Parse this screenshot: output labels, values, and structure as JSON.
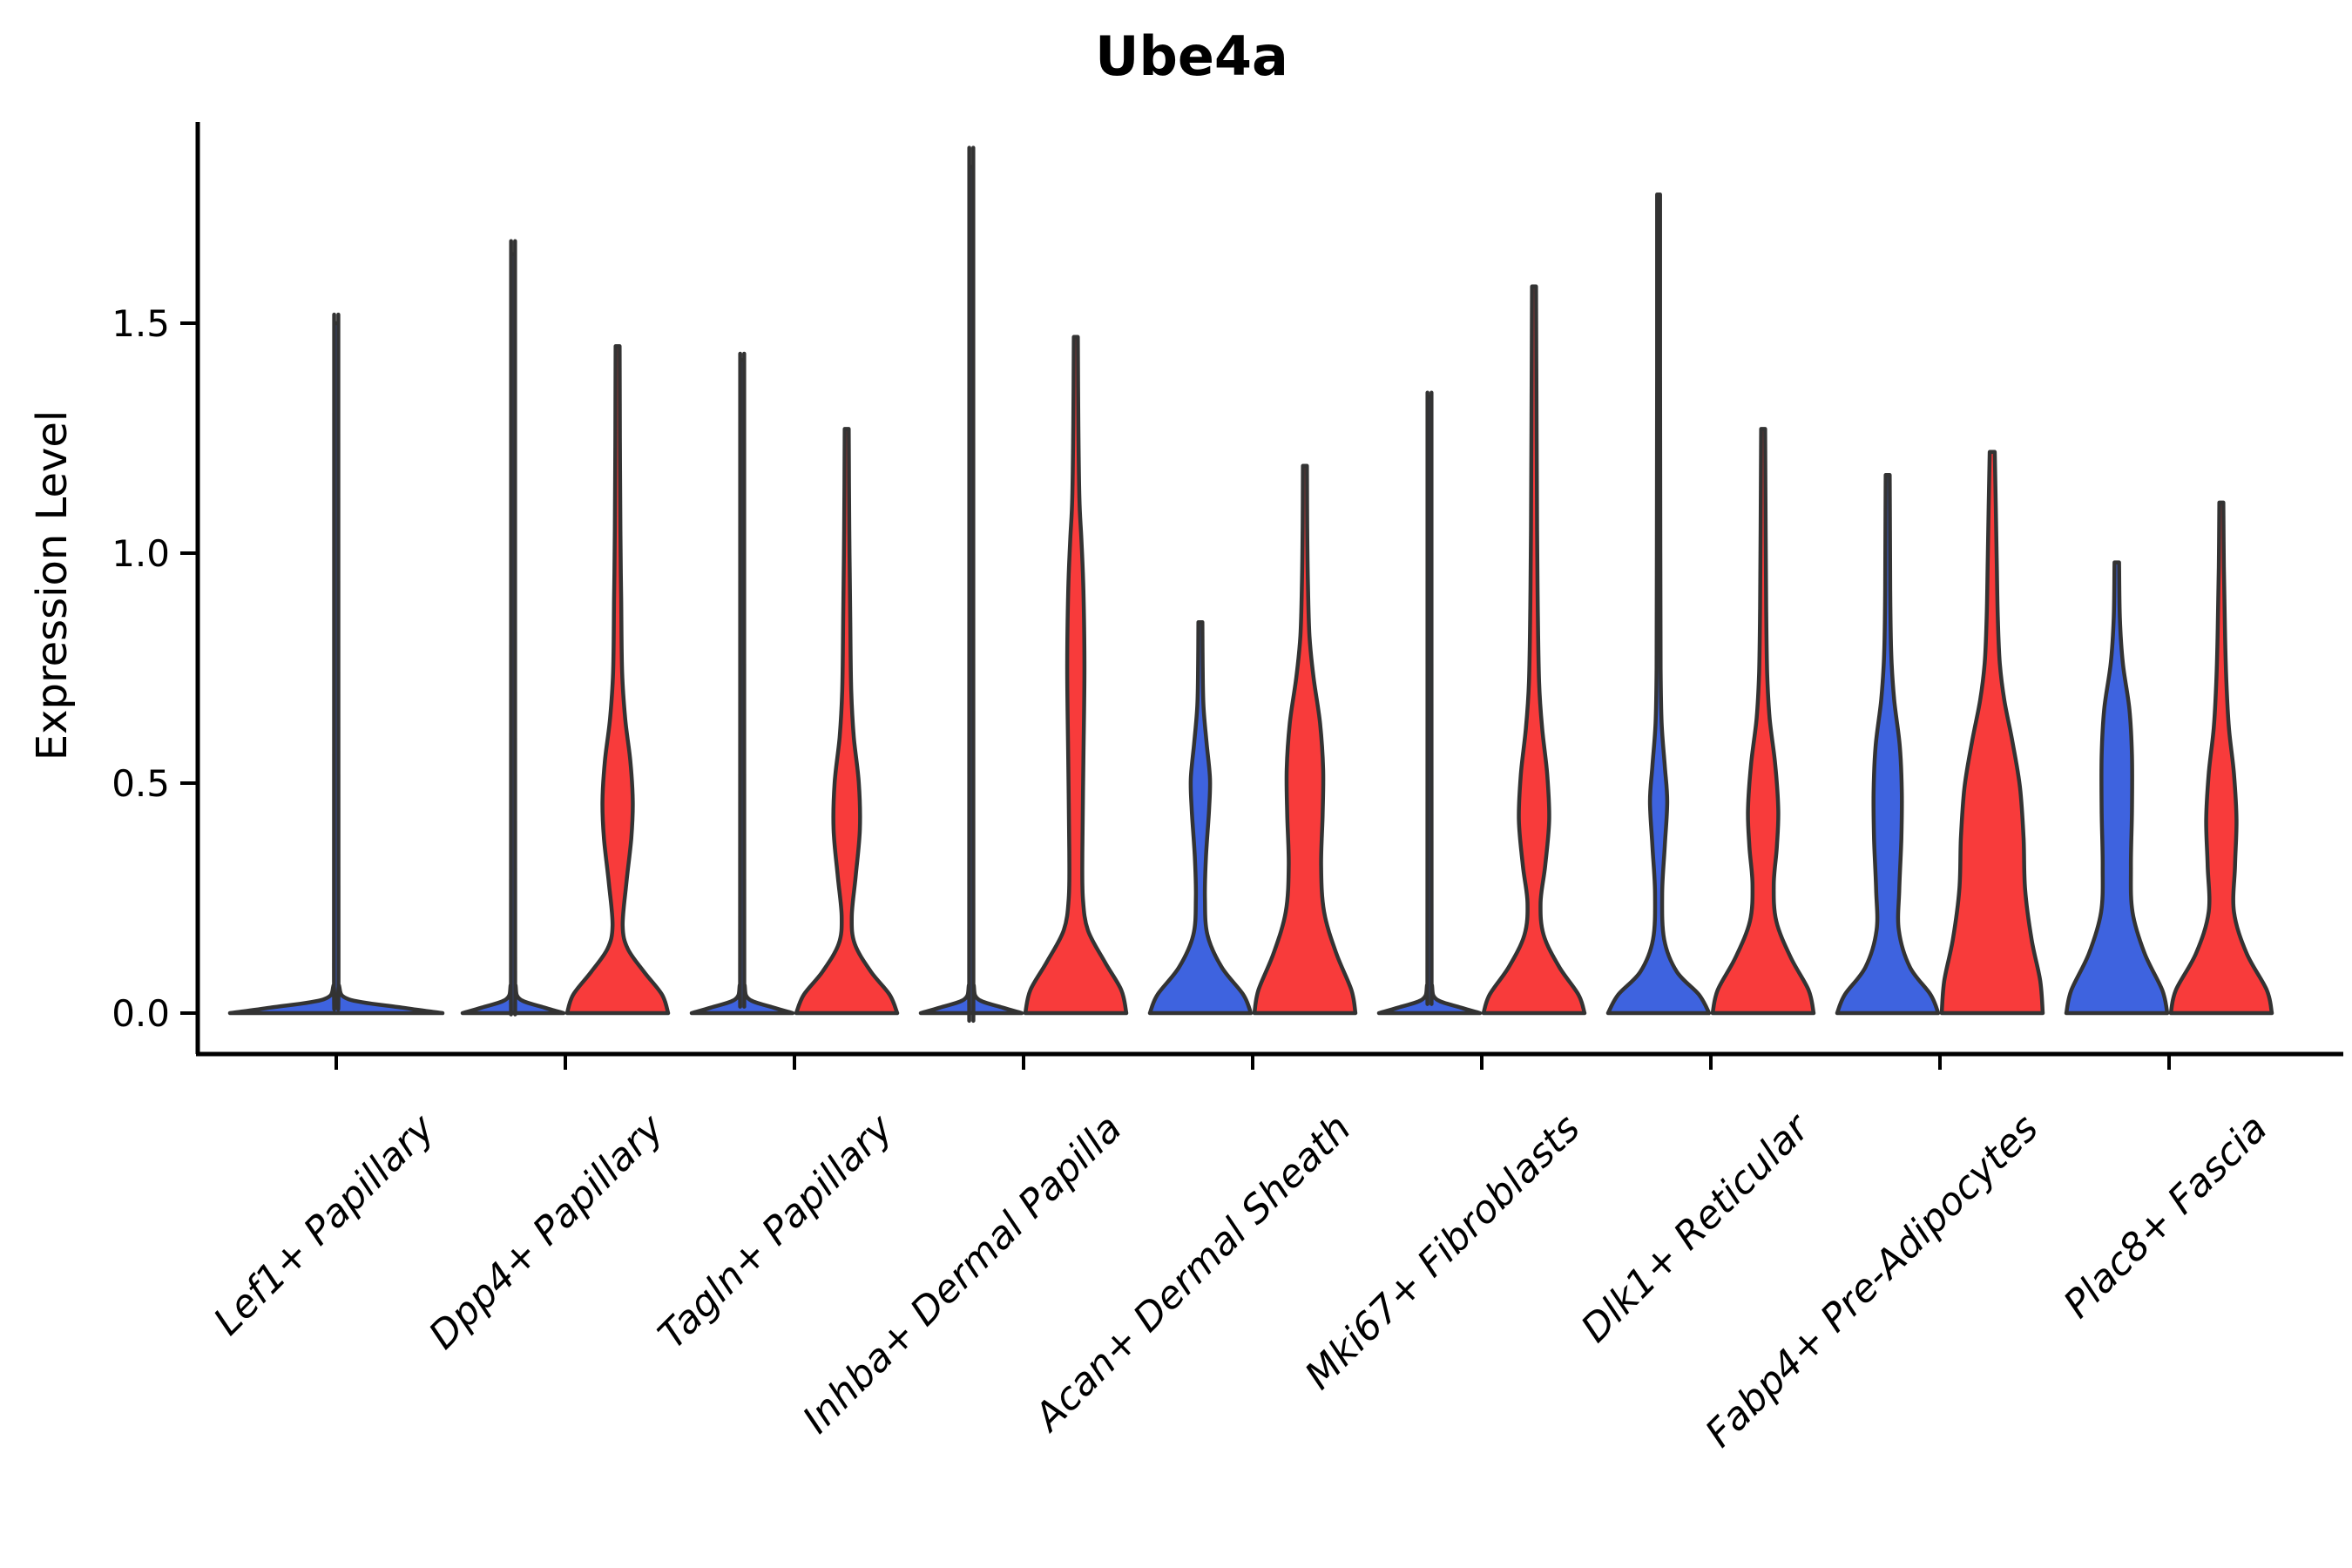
{
  "title": "Ube4a",
  "y_axis": {
    "label": "Expression Level",
    "tick_labels": [
      "0.0",
      "0.5",
      "1.0",
      "1.5"
    ]
  },
  "colors": {
    "split_blue": "#3E63DF",
    "split_red": "#F83B3B",
    "violin_outline": "#333333",
    "axis": "#000000",
    "background": "#FFFFFF"
  },
  "chart_data": {
    "type": "violin",
    "title": "Ube4a",
    "ylabel": "Expression Level",
    "xlabel": "",
    "grid": false,
    "legend": "none",
    "yticks": [
      0,
      0.5,
      1,
      1.5
    ],
    "ytick_labels": [
      "0.0",
      "0.5",
      "1.0",
      "1.5"
    ],
    "ylim": [
      -0.09,
      1.94
    ],
    "categories": [
      "Lef1+ Papillary",
      "Dpp4+ Papillary",
      "Tagln+ Papillary",
      "Inhba+ Dermal Papilla",
      "Acan+ Dermal Sheath",
      "Mki67+ Fibroblasts",
      "Dlk1+ Reticular",
      "Fabp4+ Pre-Adipocytes",
      "Plac8+ Fascia"
    ],
    "splits": [
      {
        "id": "blue",
        "color": "#3E63DF"
      },
      {
        "id": "red",
        "color": "#F83B3B"
      }
    ],
    "max_expression": {
      "blue": [
        1.5,
        1.65,
        1.42,
        1.84,
        0.85,
        1.34,
        1.78,
        1.17,
        0.98
      ],
      "red": [
        null,
        1.45,
        1.27,
        1.47,
        1.19,
        1.58,
        1.27,
        1.22,
        1.11
      ]
    },
    "violins": [
      {
        "category_index": 0,
        "category": "Lef1+ Papillary",
        "split": "blue",
        "span": "full",
        "top": 1.5,
        "profile": [
          [
            0,
            1
          ],
          [
            0.012,
            0.62
          ],
          [
            0.03,
            0.12
          ],
          [
            0.06,
            0.026
          ],
          [
            0.12,
            0.021
          ],
          [
            1.38,
            0.02
          ],
          [
            1.5,
            0.02
          ]
        ]
      },
      {
        "category_index": 1,
        "category": "Dpp4+ Papillary",
        "split": "blue",
        "span": "half",
        "top": 1.65,
        "profile": [
          [
            0,
            1
          ],
          [
            0.012,
            0.62
          ],
          [
            0.03,
            0.14
          ],
          [
            0.06,
            0.05
          ],
          [
            0.12,
            0.042
          ],
          [
            1.53,
            0.04
          ],
          [
            1.65,
            0.04
          ]
        ]
      },
      {
        "category_index": 1,
        "category": "Dpp4+ Papillary",
        "split": "red",
        "span": "half",
        "top": 1.45,
        "profile": [
          [
            0,
            1
          ],
          [
            0.04,
            0.88
          ],
          [
            0.09,
            0.52
          ],
          [
            0.14,
            0.2
          ],
          [
            0.19,
            0.1
          ],
          [
            0.28,
            0.17
          ],
          [
            0.38,
            0.27
          ],
          [
            0.46,
            0.3
          ],
          [
            0.55,
            0.25
          ],
          [
            0.64,
            0.15
          ],
          [
            0.74,
            0.09
          ],
          [
            0.9,
            0.07
          ],
          [
            1.05,
            0.055
          ],
          [
            1.25,
            0.045
          ],
          [
            1.45,
            0.04
          ]
        ]
      },
      {
        "category_index": 2,
        "category": "Tagln+ Papillary",
        "split": "blue",
        "span": "half",
        "top": 1.42,
        "profile": [
          [
            0,
            1
          ],
          [
            0.012,
            0.62
          ],
          [
            0.03,
            0.14
          ],
          [
            0.06,
            0.05
          ],
          [
            0.12,
            0.042
          ],
          [
            1.3,
            0.04
          ],
          [
            1.42,
            0.04
          ]
        ]
      },
      {
        "category_index": 2,
        "category": "Tagln+ Papillary",
        "split": "red",
        "span": "half",
        "top": 1.27,
        "profile": [
          [
            0,
            1
          ],
          [
            0.04,
            0.85
          ],
          [
            0.09,
            0.48
          ],
          [
            0.15,
            0.16
          ],
          [
            0.21,
            0.1
          ],
          [
            0.3,
            0.18
          ],
          [
            0.4,
            0.26
          ],
          [
            0.5,
            0.24
          ],
          [
            0.6,
            0.14
          ],
          [
            0.7,
            0.09
          ],
          [
            0.85,
            0.07
          ],
          [
            1.0,
            0.055
          ],
          [
            1.15,
            0.045
          ],
          [
            1.27,
            0.04
          ]
        ]
      },
      {
        "category_index": 3,
        "category": "Inhba+ Dermal Papilla",
        "split": "blue",
        "span": "half",
        "top": 1.84,
        "profile": [
          [
            0,
            1
          ],
          [
            0.012,
            0.62
          ],
          [
            0.03,
            0.14
          ],
          [
            0.06,
            0.05
          ],
          [
            0.12,
            0.042
          ],
          [
            1.72,
            0.04
          ],
          [
            1.84,
            0.04
          ]
        ]
      },
      {
        "category_index": 3,
        "category": "Inhba+ Dermal Papilla",
        "split": "red",
        "span": "half",
        "top": 1.47,
        "profile": [
          [
            0,
            1
          ],
          [
            0.05,
            0.9
          ],
          [
            0.11,
            0.58
          ],
          [
            0.18,
            0.24
          ],
          [
            0.25,
            0.14
          ],
          [
            0.35,
            0.13
          ],
          [
            0.55,
            0.15
          ],
          [
            0.75,
            0.17
          ],
          [
            0.92,
            0.15
          ],
          [
            1.03,
            0.11
          ],
          [
            1.12,
            0.07
          ],
          [
            1.28,
            0.05
          ],
          [
            1.47,
            0.04
          ]
        ]
      },
      {
        "category_index": 4,
        "category": "Acan+ Dermal Sheath",
        "split": "blue",
        "span": "half",
        "top": 0.85,
        "profile": [
          [
            0,
            1
          ],
          [
            0.04,
            0.85
          ],
          [
            0.1,
            0.42
          ],
          [
            0.17,
            0.14
          ],
          [
            0.25,
            0.09
          ],
          [
            0.34,
            0.11
          ],
          [
            0.44,
            0.17
          ],
          [
            0.51,
            0.19
          ],
          [
            0.59,
            0.12
          ],
          [
            0.67,
            0.06
          ],
          [
            0.76,
            0.045
          ],
          [
            0.85,
            0.04
          ]
        ]
      },
      {
        "category_index": 4,
        "category": "Acan+ Dermal Sheath",
        "split": "red",
        "span": "half",
        "top": 1.19,
        "profile": [
          [
            0,
            1
          ],
          [
            0.05,
            0.92
          ],
          [
            0.13,
            0.62
          ],
          [
            0.22,
            0.38
          ],
          [
            0.32,
            0.32
          ],
          [
            0.43,
            0.35
          ],
          [
            0.53,
            0.36
          ],
          [
            0.63,
            0.3
          ],
          [
            0.73,
            0.17
          ],
          [
            0.82,
            0.09
          ],
          [
            0.93,
            0.06
          ],
          [
            1.06,
            0.045
          ],
          [
            1.19,
            0.04
          ]
        ]
      },
      {
        "category_index": 5,
        "category": "Mki67+ Fibroblasts",
        "split": "blue",
        "span": "half",
        "top": 1.34,
        "profile": [
          [
            0,
            1
          ],
          [
            0.012,
            0.62
          ],
          [
            0.03,
            0.14
          ],
          [
            0.06,
            0.05
          ],
          [
            0.12,
            0.042
          ],
          [
            1.22,
            0.04
          ],
          [
            1.34,
            0.04
          ]
        ]
      },
      {
        "category_index": 5,
        "category": "Mki67+ Fibroblasts",
        "split": "red",
        "span": "half",
        "top": 1.58,
        "profile": [
          [
            0,
            1
          ],
          [
            0.04,
            0.88
          ],
          [
            0.1,
            0.5
          ],
          [
            0.17,
            0.19
          ],
          [
            0.24,
            0.13
          ],
          [
            0.32,
            0.22
          ],
          [
            0.42,
            0.3
          ],
          [
            0.52,
            0.26
          ],
          [
            0.62,
            0.16
          ],
          [
            0.72,
            0.1
          ],
          [
            0.88,
            0.075
          ],
          [
            1.05,
            0.06
          ],
          [
            1.3,
            0.05
          ],
          [
            1.58,
            0.04
          ]
        ]
      },
      {
        "category_index": 6,
        "category": "Dlk1+ Reticular",
        "split": "blue",
        "span": "half",
        "top": 1.78,
        "profile": [
          [
            0,
            1
          ],
          [
            0.04,
            0.8
          ],
          [
            0.09,
            0.36
          ],
          [
            0.16,
            0.11
          ],
          [
            0.26,
            0.07
          ],
          [
            0.36,
            0.12
          ],
          [
            0.46,
            0.17
          ],
          [
            0.54,
            0.12
          ],
          [
            0.63,
            0.06
          ],
          [
            0.75,
            0.04
          ],
          [
            1.0,
            0.035
          ],
          [
            1.4,
            0.03
          ],
          [
            1.78,
            0.03
          ]
        ]
      },
      {
        "category_index": 6,
        "category": "Dlk1+ Reticular",
        "split": "red",
        "span": "half",
        "top": 1.27,
        "profile": [
          [
            0,
            1
          ],
          [
            0.05,
            0.9
          ],
          [
            0.12,
            0.55
          ],
          [
            0.2,
            0.26
          ],
          [
            0.28,
            0.21
          ],
          [
            0.36,
            0.27
          ],
          [
            0.44,
            0.3
          ],
          [
            0.54,
            0.24
          ],
          [
            0.64,
            0.13
          ],
          [
            0.74,
            0.08
          ],
          [
            0.88,
            0.06
          ],
          [
            1.05,
            0.05
          ],
          [
            1.27,
            0.04
          ]
        ]
      },
      {
        "category_index": 7,
        "category": "Fabp4+ Pre-Adipocytes",
        "split": "blue",
        "span": "half",
        "top": 1.17,
        "profile": [
          [
            0,
            1
          ],
          [
            0.04,
            0.85
          ],
          [
            0.1,
            0.44
          ],
          [
            0.18,
            0.22
          ],
          [
            0.27,
            0.23
          ],
          [
            0.38,
            0.27
          ],
          [
            0.48,
            0.28
          ],
          [
            0.58,
            0.24
          ],
          [
            0.68,
            0.13
          ],
          [
            0.78,
            0.07
          ],
          [
            0.92,
            0.05
          ],
          [
            1.05,
            0.045
          ],
          [
            1.17,
            0.04
          ]
        ]
      },
      {
        "category_index": 7,
        "category": "Fabp4+ Pre-Adipocytes",
        "split": "red",
        "span": "half",
        "top": 1.22,
        "profile": [
          [
            0,
            1
          ],
          [
            0.07,
            0.95
          ],
          [
            0.16,
            0.78
          ],
          [
            0.27,
            0.65
          ],
          [
            0.38,
            0.62
          ],
          [
            0.49,
            0.55
          ],
          [
            0.59,
            0.4
          ],
          [
            0.68,
            0.24
          ],
          [
            0.76,
            0.15
          ],
          [
            0.86,
            0.11
          ],
          [
            0.98,
            0.09
          ],
          [
            1.1,
            0.07
          ],
          [
            1.22,
            0.05
          ]
        ]
      },
      {
        "category_index": 8,
        "category": "Plac8+ Fascia",
        "split": "blue",
        "span": "half",
        "top": 0.98,
        "profile": [
          [
            0,
            1
          ],
          [
            0.05,
            0.9
          ],
          [
            0.13,
            0.55
          ],
          [
            0.22,
            0.31
          ],
          [
            0.32,
            0.28
          ],
          [
            0.44,
            0.3
          ],
          [
            0.56,
            0.3
          ],
          [
            0.66,
            0.25
          ],
          [
            0.76,
            0.12
          ],
          [
            0.86,
            0.06
          ],
          [
            0.98,
            0.045
          ]
        ]
      },
      {
        "category_index": 8,
        "category": "Plac8+ Fascia",
        "split": "red",
        "span": "half",
        "top": 1.11,
        "profile": [
          [
            0,
            1
          ],
          [
            0.05,
            0.9
          ],
          [
            0.13,
            0.5
          ],
          [
            0.22,
            0.25
          ],
          [
            0.32,
            0.27
          ],
          [
            0.42,
            0.3
          ],
          [
            0.52,
            0.25
          ],
          [
            0.62,
            0.15
          ],
          [
            0.72,
            0.1
          ],
          [
            0.84,
            0.07
          ],
          [
            0.97,
            0.05
          ],
          [
            1.11,
            0.04
          ]
        ]
      }
    ]
  }
}
